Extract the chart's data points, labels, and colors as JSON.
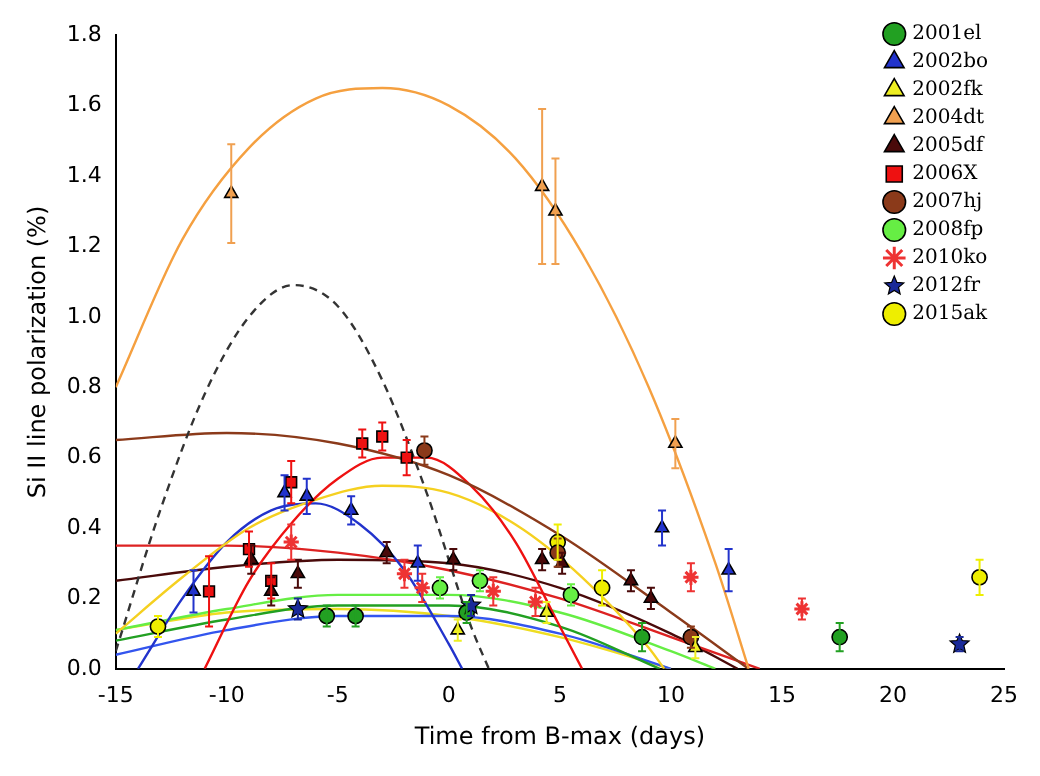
{
  "chart_data": {
    "type": "scatter",
    "xlabel": "Time from B-max (days)",
    "ylabel": "Si II line polarization (%)",
    "xlim": [
      -15,
      25
    ],
    "xticks": [
      -15,
      -10,
      -5,
      0,
      5,
      10,
      15,
      20,
      25
    ],
    "ylim": [
      0,
      1.8
    ],
    "yticks": [
      {
        "value": 0,
        "label": "0.0"
      },
      {
        "value": 0.2,
        "label": "0.2"
      },
      {
        "value": 0.4,
        "label": "0.4"
      },
      {
        "value": 0.6,
        "label": "0.6"
      },
      {
        "value": 0.8,
        "label": "0.8"
      },
      {
        "value": 1,
        "label": "1.0"
      },
      {
        "value": 1.2,
        "label": "1.2"
      },
      {
        "value": 1.4,
        "label": "1.4"
      },
      {
        "value": 1.6,
        "label": "1.6"
      },
      {
        "value": 1.8,
        "label": "1.8"
      }
    ],
    "grid": false,
    "legend": "top right",
    "series": [
      {
        "name": "2001el",
        "color": "#22a022",
        "marker": "circle",
        "x": [
          -5.5,
          -4.2,
          0.8,
          8.7,
          17.6
        ],
        "values": [
          0.15,
          0.15,
          0.16,
          0.09,
          0.09
        ],
        "errors": [
          0.03,
          0.03,
          0.03,
          0.04,
          0.04
        ]
      },
      {
        "name": "2002bo",
        "color": "#2233cc",
        "marker": "triangle",
        "x": [
          -11.5,
          -7.4,
          -6.4,
          -4.4,
          -1.4,
          9.6,
          12.6
        ],
        "values": [
          0.22,
          0.5,
          0.49,
          0.45,
          0.3,
          0.4,
          0.28
        ],
        "errors": [
          0.06,
          0.05,
          0.05,
          0.04,
          0.05,
          0.05,
          0.06
        ]
      },
      {
        "name": "2002fk",
        "color": "#eeee22",
        "marker": "triangle",
        "x": [
          0.4,
          4.4,
          11.1
        ],
        "values": [
          0.11,
          0.16,
          0.06
        ],
        "errors": [
          0.03,
          0.03,
          0.03
        ]
      },
      {
        "name": "2004dt",
        "color": "#f0a050",
        "marker": "triangle",
        "x": [
          -9.8,
          4.2,
          4.8,
          10.2
        ],
        "values": [
          1.35,
          1.37,
          1.3,
          0.64
        ],
        "errors": [
          0.14,
          0.22,
          0.15,
          0.07
        ]
      },
      {
        "name": "2005df",
        "color": "#4a0a0a",
        "marker": "triangle",
        "x": [
          -8.9,
          -8,
          -6.8,
          -2.8,
          0.2,
          4.2,
          5.1,
          8.2,
          9.1
        ],
        "values": [
          0.31,
          0.22,
          0.27,
          0.33,
          0.31,
          0.31,
          0.3,
          0.25,
          0.2
        ],
        "errors": [
          0.04,
          0.04,
          0.04,
          0.03,
          0.03,
          0.03,
          0.03,
          0.03,
          0.03
        ]
      },
      {
        "name": "2006X",
        "color": "#ee1111",
        "marker": "square",
        "x": [
          -10.8,
          -9,
          -8,
          -7.1,
          -3.9,
          -3,
          -1.9
        ],
        "values": [
          0.22,
          0.34,
          0.25,
          0.53,
          0.64,
          0.66,
          0.6
        ],
        "errors": [
          0.1,
          0.05,
          0.05,
          0.06,
          0.04,
          0.04,
          0.05
        ]
      },
      {
        "name": "2007hj",
        "color": "#8b3a1a",
        "marker": "circle",
        "x": [
          -1.1,
          4.9,
          10.9
        ],
        "values": [
          0.62,
          0.33,
          0.09
        ],
        "errors": [
          0.04,
          0.04,
          0.03
        ]
      },
      {
        "name": "2008fp",
        "color": "#66ee44",
        "marker": "circle",
        "x": [
          -0.4,
          1.4,
          5.5
        ],
        "values": [
          0.23,
          0.25,
          0.21
        ],
        "errors": [
          0.03,
          0.03,
          0.03
        ]
      },
      {
        "name": "2010ko",
        "color": "#ee3333",
        "marker": "cross",
        "x": [
          -7.1,
          -2,
          -1.2,
          2,
          3.9,
          10.9,
          15.9
        ],
        "values": [
          0.36,
          0.27,
          0.23,
          0.22,
          0.19,
          0.26,
          0.17
        ],
        "errors": [
          0.05,
          0.04,
          0.04,
          0.04,
          0.04,
          0.04,
          0.03
        ]
      },
      {
        "name": "2012fr",
        "color": "#1a2a99",
        "marker": "star",
        "x": [
          -6.8,
          1,
          23
        ],
        "values": [
          0.17,
          0.18,
          0.07
        ],
        "errors": [
          0.03,
          0.03,
          0.02
        ]
      },
      {
        "name": "2015ak",
        "color": "#eeee00",
        "marker": "circle",
        "x": [
          -13.1,
          4.9,
          6.9,
          23.9
        ],
        "values": [
          0.12,
          0.36,
          0.23,
          0.26
        ],
        "errors": [
          0.03,
          0.05,
          0.05,
          0.05
        ]
      },
      {
        "type": "line",
        "color": "#f5a040",
        "marker": "none",
        "x": [
          -15,
          -12,
          -9,
          -6,
          -3,
          0,
          3,
          6,
          9,
          12,
          13.5
        ],
        "values": [
          0.8,
          1.22,
          1.48,
          1.62,
          1.65,
          1.6,
          1.45,
          1.18,
          0.8,
          0.3,
          0
        ]
      },
      {
        "type": "line",
        "color": "#333333",
        "marker": "none",
        "line_style": "dashed",
        "x": [
          -15,
          -13,
          -11,
          -9,
          -7,
          -5,
          -3,
          -1,
          1,
          1.8
        ],
        "values": [
          0.05,
          0.45,
          0.78,
          1,
          1.09,
          1.03,
          0.82,
          0.5,
          0.12,
          0
        ]
      },
      {
        "type": "line",
        "color": "#8b3a1a",
        "marker": "none",
        "x": [
          -15,
          -10,
          -5,
          0,
          5,
          10,
          13.5
        ],
        "values": [
          0.65,
          0.67,
          0.64,
          0.55,
          0.38,
          0.16,
          0
        ]
      },
      {
        "type": "line",
        "color": "#ee1111",
        "marker": "none",
        "x": [
          -11,
          -9,
          -7,
          -5,
          -3,
          -1,
          1,
          3,
          5,
          6
        ],
        "values": [
          0,
          0.25,
          0.42,
          0.54,
          0.6,
          0.6,
          0.52,
          0.36,
          0.12,
          0
        ]
      },
      {
        "type": "line",
        "color": "#f5d020",
        "marker": "none",
        "x": [
          -15,
          -12,
          -9,
          -6,
          -3,
          0,
          3,
          6,
          9,
          9.7
        ],
        "values": [
          0.1,
          0.26,
          0.4,
          0.48,
          0.52,
          0.5,
          0.41,
          0.26,
          0.06,
          0
        ]
      },
      {
        "type": "line",
        "color": "#2233cc",
        "marker": "none",
        "x": [
          -14,
          -12,
          -10,
          -8,
          -6,
          -4,
          -2,
          0,
          0.6
        ],
        "values": [
          0,
          0.2,
          0.36,
          0.45,
          0.47,
          0.41,
          0.28,
          0.07,
          0
        ]
      },
      {
        "type": "line",
        "color": "#dd2222",
        "marker": "none",
        "x": [
          -15,
          -10,
          -5,
          0,
          5,
          10,
          14
        ],
        "values": [
          0.35,
          0.35,
          0.33,
          0.28,
          0.2,
          0.09,
          0
        ]
      },
      {
        "type": "line",
        "color": "#4a0a0a",
        "marker": "none",
        "x": [
          -15,
          -10,
          -5,
          0,
          5,
          10,
          13
        ],
        "values": [
          0.25,
          0.29,
          0.31,
          0.3,
          0.23,
          0.1,
          0
        ]
      },
      {
        "type": "line",
        "color": "#66ee44",
        "marker": "none",
        "x": [
          -15,
          -10,
          -5,
          0,
          5,
          10,
          12
        ],
        "values": [
          0.11,
          0.17,
          0.21,
          0.21,
          0.16,
          0.05,
          0
        ]
      },
      {
        "type": "line",
        "color": "#22a022",
        "marker": "none",
        "x": [
          -15,
          -10,
          -5,
          0,
          5,
          9.5
        ],
        "values": [
          0.08,
          0.14,
          0.18,
          0.18,
          0.12,
          0
        ]
      },
      {
        "type": "line",
        "color": "#3355ee",
        "marker": "none",
        "x": [
          -15,
          -10,
          -5,
          0,
          5,
          10
        ],
        "values": [
          0.04,
          0.11,
          0.15,
          0.15,
          0.1,
          0
        ]
      },
      {
        "type": "line",
        "color": "#eedd22",
        "marker": "none",
        "x": [
          -15,
          -10,
          -5,
          0,
          5,
          10
        ],
        "values": [
          0.11,
          0.16,
          0.17,
          0.15,
          0.09,
          0
        ]
      }
    ]
  }
}
